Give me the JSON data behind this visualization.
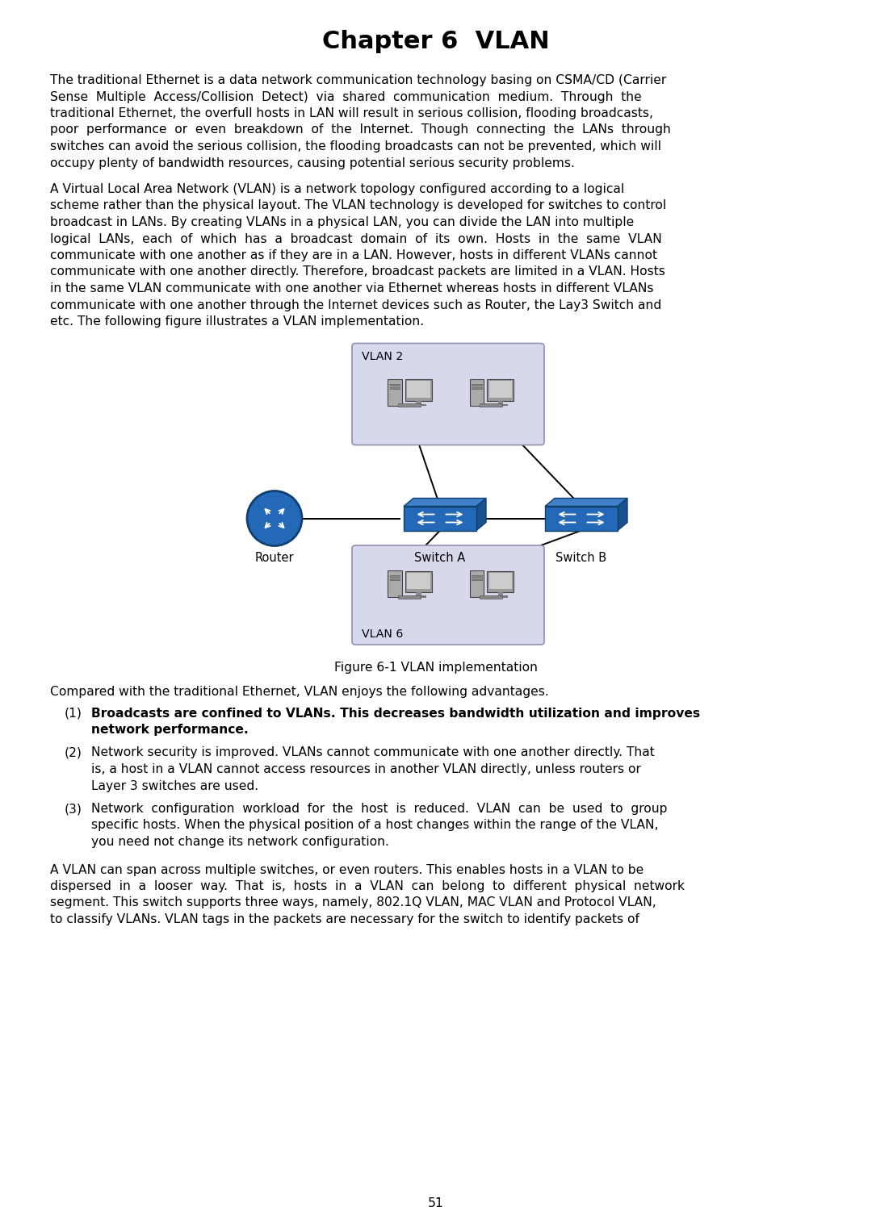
{
  "title": "Chapter 6  VLAN",
  "title_fontsize": 22,
  "body_fontsize": 11.2,
  "page_number": "51",
  "background_color": "#ffffff",
  "text_color": "#000000",
  "figure_caption": "Figure 6-1 VLAN implementation",
  "para3": "Compared with the traditional Ethernet, VLAN enjoys the following advantages.",
  "vlan2_label": "VLAN 2",
  "vlan6_label": "VLAN 6",
  "router_label": "Router",
  "switch_a_label": "Switch A",
  "switch_b_label": "Switch B",
  "vlan_box_color": "#d8d8ec",
  "vlan_box_border": "#9090b0",
  "switch_color": "#2060b0",
  "router_color": "#2060b0",
  "line_color": "#000000",
  "para1_lines": [
    "The traditional Ethernet is a data network communication technology basing on CSMA/CD (Carrier",
    "Sense  Multiple  Access/Collision  Detect)  via  shared  communication  medium.  Through  the",
    "traditional Ethernet, the overfull hosts in LAN will result in serious collision, flooding broadcasts,",
    "poor  performance  or  even  breakdown  of  the  Internet.  Though  connecting  the  LANs  through",
    "switches can avoid the serious collision, the flooding broadcasts can not be prevented, which will",
    "occupy plenty of bandwidth resources, causing potential serious security problems."
  ],
  "para2_lines": [
    "A Virtual Local Area Network (VLAN) is a network topology configured according to a logical",
    "scheme rather than the physical layout. The VLAN technology is developed for switches to control",
    "broadcast in LANs. By creating VLANs in a physical LAN, you can divide the LAN into multiple",
    "logical  LANs,  each  of  which  has  a  broadcast  domain  of  its  own.  Hosts  in  the  same  VLAN",
    "communicate with one another as if they are in a LAN. However, hosts in different VLANs cannot",
    "communicate with one another directly. Therefore, broadcast packets are limited in a VLAN. Hosts",
    "in the same VLAN communicate with one another via Ethernet whereas hosts in different VLANs",
    "communicate with one another through the Internet devices such as Router, the Lay3 Switch and",
    "etc. The following figure illustrates a VLAN implementation."
  ],
  "list1_num": "(1)",
  "list1_lines": [
    "Broadcasts are confined to VLANs. This decreases bandwidth utilization and improves",
    "network performance."
  ],
  "list1_bold": true,
  "list2_num": "(2)",
  "list2_lines": [
    "Network security is improved. VLANs cannot communicate with one another directly. That",
    "is, a host in a VLAN cannot access resources in another VLAN directly, unless routers or",
    "Layer 3 switches are used."
  ],
  "list2_bold": false,
  "list3_num": "(3)",
  "list3_lines": [
    "Network  configuration  workload  for  the  host  is  reduced.  VLAN  can  be  used  to  group",
    "specific hosts. When the physical position of a host changes within the range of the VLAN,",
    "you need not change its network configuration."
  ],
  "list3_bold": false,
  "para4_lines": [
    "A VLAN can span across multiple switches, or even routers. This enables hosts in a VLAN to be",
    "dispersed  in  a  looser  way.  That  is,  hosts  in  a  VLAN  can  belong  to  different  physical  network",
    "segment. This switch supports three ways, namely, 802.1Q VLAN, MAC VLAN and Protocol VLAN,",
    "to classify VLANs. VLAN tags in the packets are necessary for the switch to identify packets of"
  ]
}
